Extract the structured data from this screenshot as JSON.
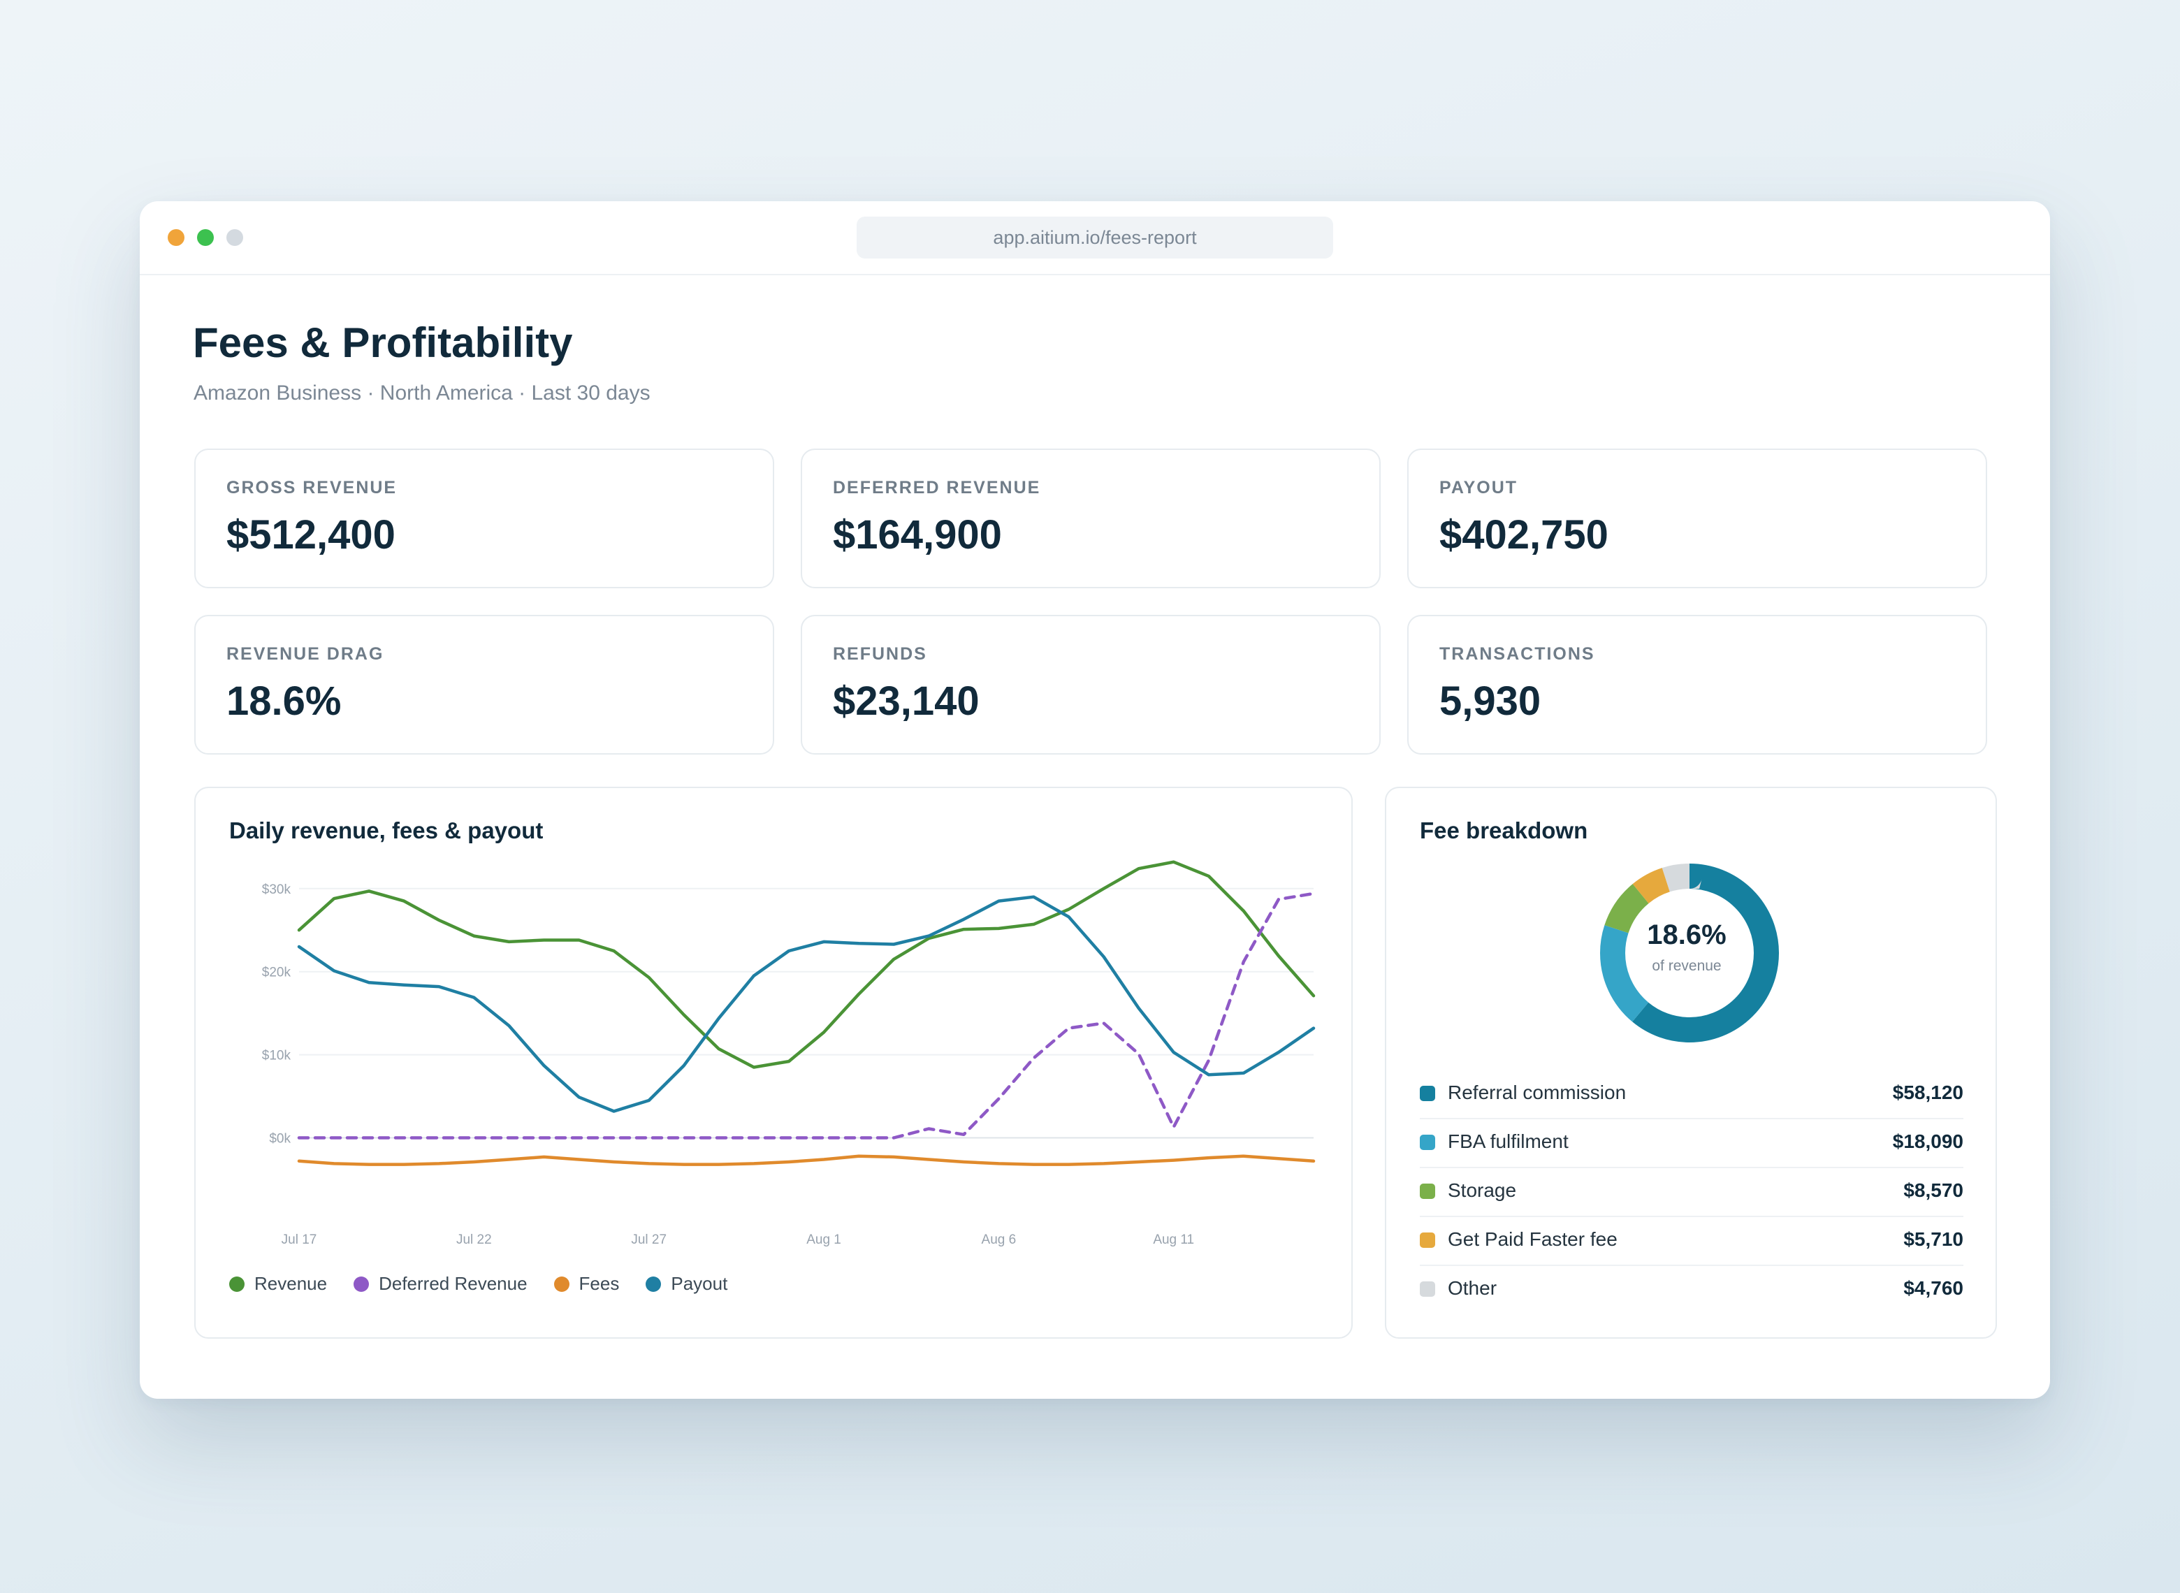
{
  "browser": {
    "url": "app.aitium.io/fees-report"
  },
  "header": {
    "title": "Fees & Profitability",
    "subtitle": "Amazon Business · North America · Last 30 days"
  },
  "kpis": [
    {
      "label": "GROSS REVENUE",
      "value": "$512,400"
    },
    {
      "label": "DEFERRED REVENUE",
      "value": "$164,900"
    },
    {
      "label": "PAYOUT",
      "value": "$402,750"
    },
    {
      "label": "REVENUE DRAG",
      "value": "18.6%"
    },
    {
      "label": "REFUNDS",
      "value": "$23,140"
    },
    {
      "label": "TRANSACTIONS",
      "value": "5,930"
    }
  ],
  "daily_chart": {
    "title": "Daily revenue, fees & payout"
  },
  "fee_breakdown": {
    "title": "Fee breakdown",
    "center_value": "18.6%",
    "center_label": "of revenue",
    "items": [
      {
        "name": "Referral commission",
        "amount": "$58,120",
        "value": 58120,
        "color": "#15809f"
      },
      {
        "name": "FBA fulfilment",
        "amount": "$18,090",
        "value": 18090,
        "color": "#35a5c8"
      },
      {
        "name": "Storage",
        "amount": "$8,570",
        "value": 8570,
        "color": "#7bb04a"
      },
      {
        "name": "Get Paid Faster fee",
        "amount": "$5,710",
        "value": 5710,
        "color": "#e6a93d"
      },
      {
        "name": "Other",
        "amount": "$4,760",
        "value": 4760,
        "color": "#d6dadd"
      }
    ]
  },
  "chart_data": {
    "type": "line",
    "title": "Daily revenue, fees & payout",
    "xlabel": "",
    "ylabel": "",
    "x": [
      "Jul 17",
      "Jul 18",
      "Jul 19",
      "Jul 20",
      "Jul 21",
      "Jul 22",
      "Jul 23",
      "Jul 24",
      "Jul 25",
      "Jul 26",
      "Jul 27",
      "Jul 28",
      "Jul 29",
      "Jul 30",
      "Jul 31",
      "Aug 1",
      "Aug 2",
      "Aug 3",
      "Aug 4",
      "Aug 5",
      "Aug 6",
      "Aug 7",
      "Aug 8",
      "Aug 9",
      "Aug 10",
      "Aug 11",
      "Aug 12",
      "Aug 13",
      "Aug 14",
      "Aug 15"
    ],
    "x_ticks": [
      "Jul 17",
      "Jul 22",
      "Jul 27",
      "Aug 1",
      "Aug 6",
      "Aug 11"
    ],
    "y_ticks": [
      0,
      10000,
      20000,
      30000
    ],
    "y_tick_labels": [
      "$0k",
      "$10k",
      "$20k",
      "$30k"
    ],
    "ylim": [
      -5000,
      32000
    ],
    "grid": true,
    "legend": "bottom-left",
    "series": [
      {
        "name": "Revenue",
        "color": "#4a9336",
        "dashed": false,
        "values": [
          25000,
          28800,
          29700,
          28500,
          26200,
          24300,
          23600,
          23800,
          23800,
          22500,
          19300,
          14800,
          10700,
          8500,
          9200,
          12700,
          17300,
          21500,
          24000,
          25100,
          25200,
          25700,
          27500,
          30000,
          32400,
          33200,
          31500,
          27300,
          21900,
          17100
        ]
      },
      {
        "name": "Deferred Revenue",
        "color": "#8e59c6",
        "dashed": true,
        "values": [
          0,
          0,
          0,
          0,
          0,
          0,
          0,
          0,
          0,
          0,
          0,
          0,
          0,
          0,
          0,
          0,
          0,
          0,
          1100,
          400,
          4700,
          9600,
          13200,
          13800,
          10100,
          1300,
          9300,
          21200,
          28700,
          29400
        ]
      },
      {
        "name": "Fees",
        "color": "#e08a2c",
        "dashed": false,
        "values": [
          -2800,
          -3100,
          -3200,
          -3200,
          -3100,
          -2900,
          -2600,
          -2300,
          -2600,
          -2900,
          -3100,
          -3200,
          -3200,
          -3100,
          -2900,
          -2600,
          -2200,
          -2300,
          -2600,
          -2900,
          -3100,
          -3200,
          -3200,
          -3100,
          -2900,
          -2700,
          -2400,
          -2200,
          -2500,
          -2800
        ]
      },
      {
        "name": "Payout",
        "color": "#1f7fa3",
        "dashed": false,
        "values": [
          23000,
          20100,
          18700,
          18400,
          18200,
          16900,
          13500,
          8700,
          4900,
          3200,
          4500,
          8700,
          14400,
          19500,
          22500,
          23600,
          23400,
          23300,
          24300,
          26300,
          28500,
          29000,
          26600,
          21800,
          15600,
          10300,
          7600,
          7800,
          10300,
          13200
        ]
      }
    ]
  }
}
